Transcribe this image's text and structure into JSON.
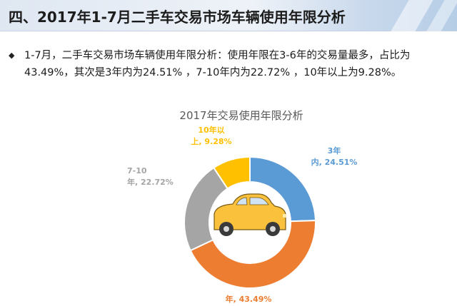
{
  "header": {
    "title": "四、2017年1-7月二手车交易市场车辆使用年限分析"
  },
  "summary": {
    "bullet": "◆",
    "text": "1-7月，二手车交易市场车辆使用年限分析：使用年限在3-6年的交易量最多，占比为43.49%，其次是3年内为24.51% ，7-10年内为22.72% ，10年以上为9.28%。"
  },
  "chart_data": {
    "type": "pie",
    "donut": true,
    "title": "2017年交易使用年限分析",
    "slices": [
      {
        "label_lines": [
          "3年",
          "内, 24.51%"
        ],
        "value": 24.51,
        "color": "#5b9bd5"
      },
      {
        "label_lines": [
          "年, 43.49%"
        ],
        "value": 43.49,
        "color": "#ed7d31"
      },
      {
        "label_lines": [
          "7-10",
          "年, 22.72%"
        ],
        "value": 22.72,
        "color": "#a5a5a5"
      },
      {
        "label_lines": [
          "10年以",
          "上, 9.28%"
        ],
        "value": 9.28,
        "color": "#ffc000"
      }
    ],
    "center_icon": "car-icon"
  }
}
